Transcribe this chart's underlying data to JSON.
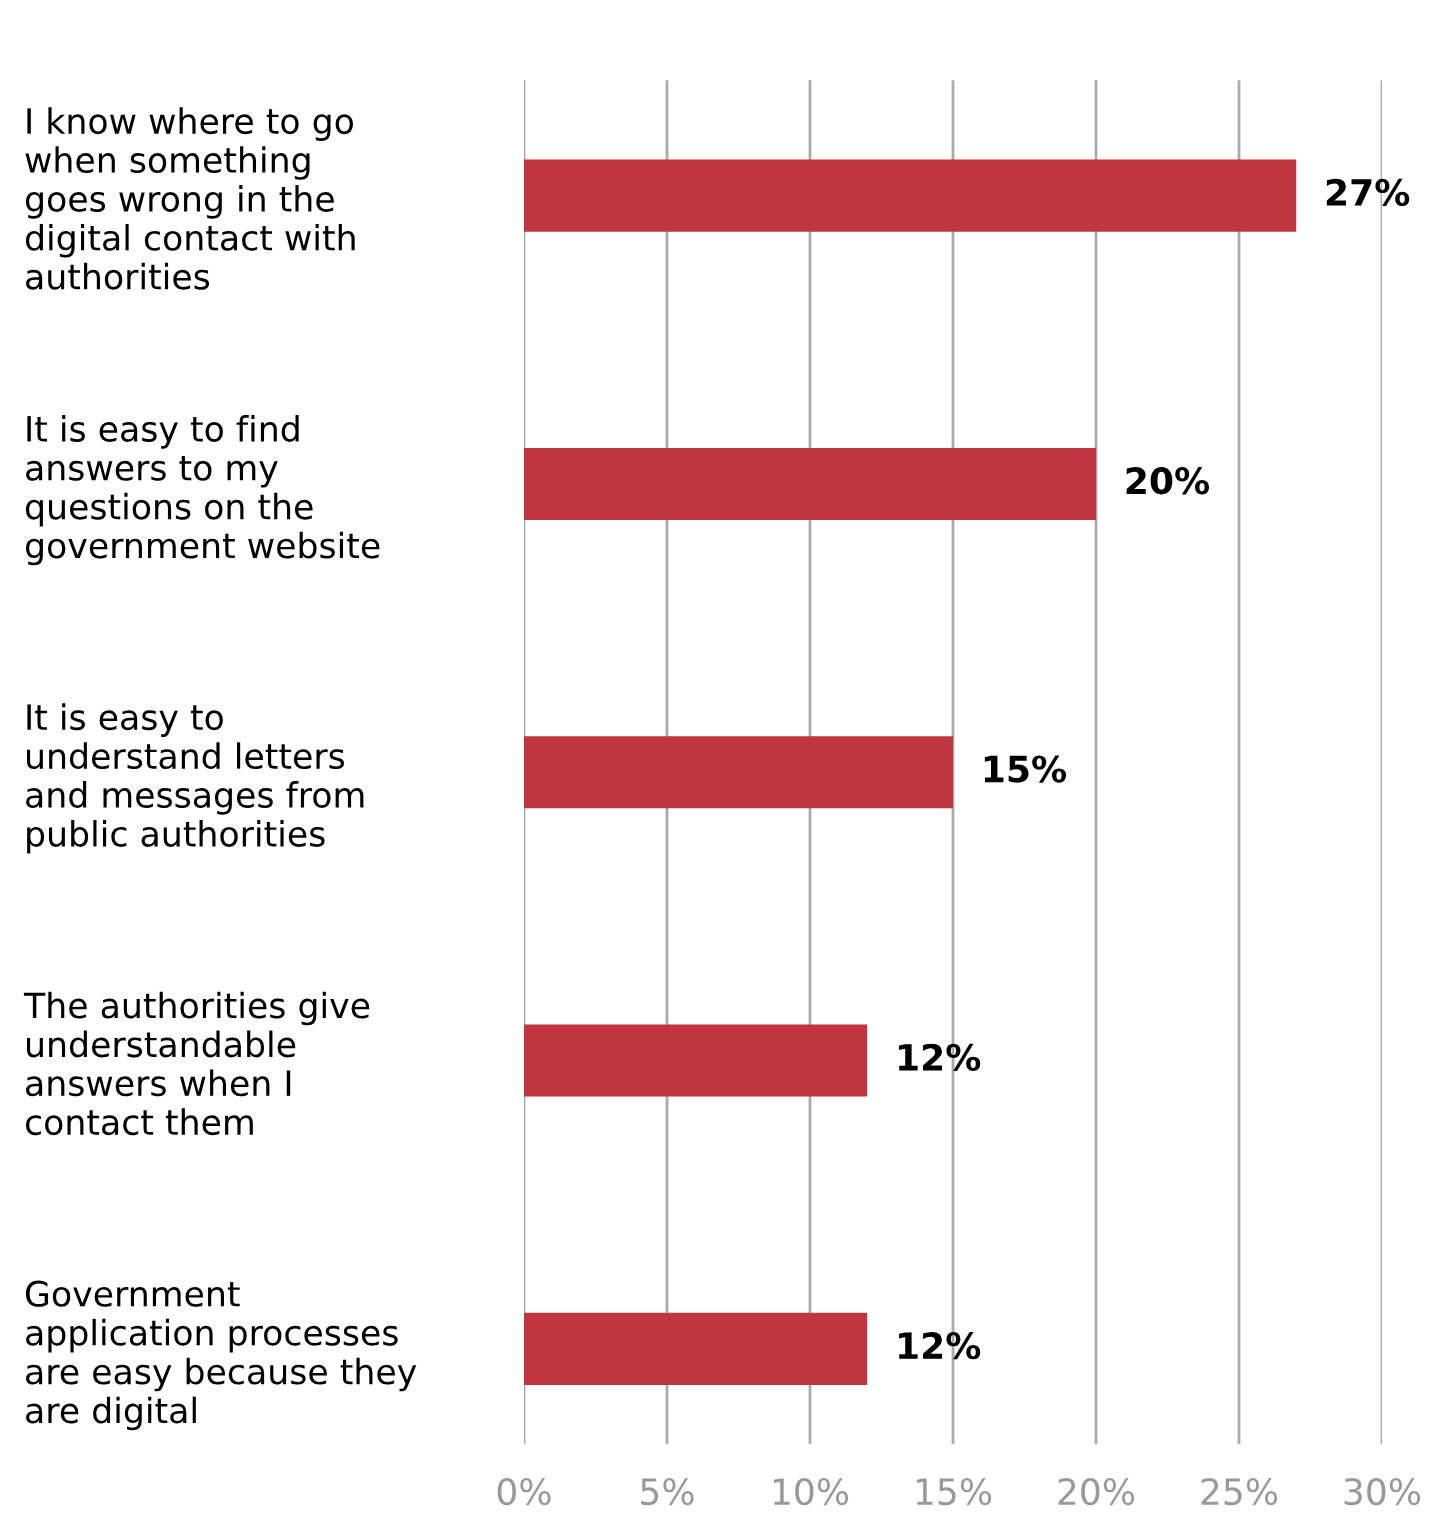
{
  "chart_data": {
    "type": "bar",
    "orientation": "horizontal",
    "categories": [
      "I know where to go\nwhen something\ngoes wrong in the\ndigital contact with\nauthorities",
      "It is easy to find\nanswers to my\nquestions on the\ngovernment website",
      "It is easy to\nunderstand letters\nand messages from\npublic authorities",
      "The authorities give\nunderstandable\nanswers when I\ncontact them",
      "Government\napplication processes\nare easy because they\nare digital"
    ],
    "values": [
      27,
      20,
      15,
      12,
      12
    ],
    "value_labels": [
      "27%",
      "20%",
      "15%",
      "12%",
      "12%"
    ],
    "color": "#c0353f",
    "xlim": [
      0,
      30
    ],
    "xticks": [
      {
        "value": 0,
        "label": "0%"
      },
      {
        "value": 5,
        "label": "5%"
      },
      {
        "value": 10,
        "label": "10%"
      },
      {
        "value": 15,
        "label": "15%"
      },
      {
        "value": 20,
        "label": "20%"
      },
      {
        "value": 25,
        "label": "25%"
      },
      {
        "value": 30,
        "label": "30%"
      }
    ],
    "grid": "x",
    "legend": false
  }
}
